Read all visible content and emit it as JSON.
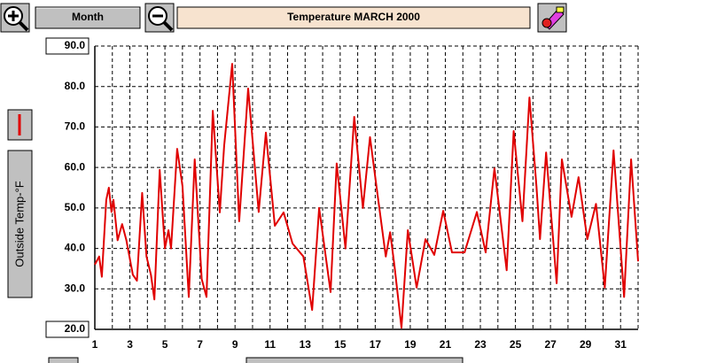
{
  "ui": {
    "period_button": "Month"
  },
  "chart_data": {
    "type": "line",
    "title": "Temperature MARCH 2000",
    "y_label": "Outside Temp-°F",
    "x": [
      1.0,
      1.25,
      1.4,
      1.65,
      1.8,
      1.95,
      2.06,
      2.3,
      2.56,
      2.8,
      3.17,
      3.4,
      3.7,
      3.95,
      4.2,
      4.4,
      4.7,
      5.0,
      5.2,
      5.35,
      5.7,
      6.0,
      6.36,
      6.7,
      7.1,
      7.37,
      7.73,
      8.13,
      8.38,
      8.84,
      9.24,
      9.75,
      10.35,
      10.76,
      11.27,
      11.77,
      12.28,
      12.9,
      13.4,
      13.8,
      14.45,
      14.8,
      15.3,
      15.8,
      16.3,
      16.7,
      17.1,
      17.6,
      17.85,
      18.1,
      18.5,
      18.86,
      19.36,
      19.87,
      20.37,
      20.88,
      21.38,
      22.1,
      22.8,
      23.3,
      23.8,
      24.5,
      24.9,
      25.4,
      25.8,
      26.2,
      26.4,
      26.75,
      27.35,
      27.65,
      28.2,
      28.6,
      29.1,
      29.6,
      30.1,
      30.6,
      31.2,
      31.6,
      32.0
    ],
    "values": [
      36,
      38,
      33,
      52,
      55,
      49,
      52,
      42,
      46,
      42,
      33.5,
      32,
      53.7,
      38,
      33.5,
      27.4,
      59.4,
      40,
      44.5,
      40,
      64.6,
      55.4,
      28,
      62,
      32.4,
      28,
      74,
      48.9,
      65.3,
      85.6,
      46.7,
      79.5,
      49,
      68.6,
      45.6,
      48.9,
      41.2,
      38,
      24.8,
      50,
      29.2,
      61,
      40,
      72.5,
      50,
      67.5,
      54.3,
      38,
      44,
      35.7,
      20.4,
      44.5,
      30.3,
      42.3,
      38.4,
      49.3,
      39,
      39,
      49,
      39,
      59.8,
      34.6,
      69,
      46.7,
      77.3,
      55.4,
      42.3,
      63.7,
      31.4,
      62,
      47.8,
      57.6,
      42.3,
      51,
      30.3,
      64.2,
      28,
      62,
      36.8
    ],
    "color": "#e00000",
    "xlim": [
      1,
      32
    ],
    "xticks": [
      1,
      3,
      5,
      7,
      9,
      11,
      13,
      15,
      17,
      19,
      21,
      23,
      25,
      27,
      29,
      31
    ],
    "minor_xticks": [
      2,
      4,
      6,
      8,
      10,
      12,
      14,
      16,
      18,
      20,
      22,
      24,
      26,
      28,
      30,
      32
    ],
    "ylim": [
      20,
      90
    ],
    "yticks": [
      {
        "value": 20,
        "label": "20.0"
      },
      {
        "value": 30,
        "label": "30.0"
      },
      {
        "value": 40,
        "label": "40.0"
      },
      {
        "value": 50,
        "label": "50.0"
      },
      {
        "value": 60,
        "label": "60.0"
      },
      {
        "value": 70,
        "label": "70.0"
      },
      {
        "value": 80,
        "label": "80.0"
      },
      {
        "value": 90,
        "label": "90.0"
      }
    ],
    "grid": true
  }
}
